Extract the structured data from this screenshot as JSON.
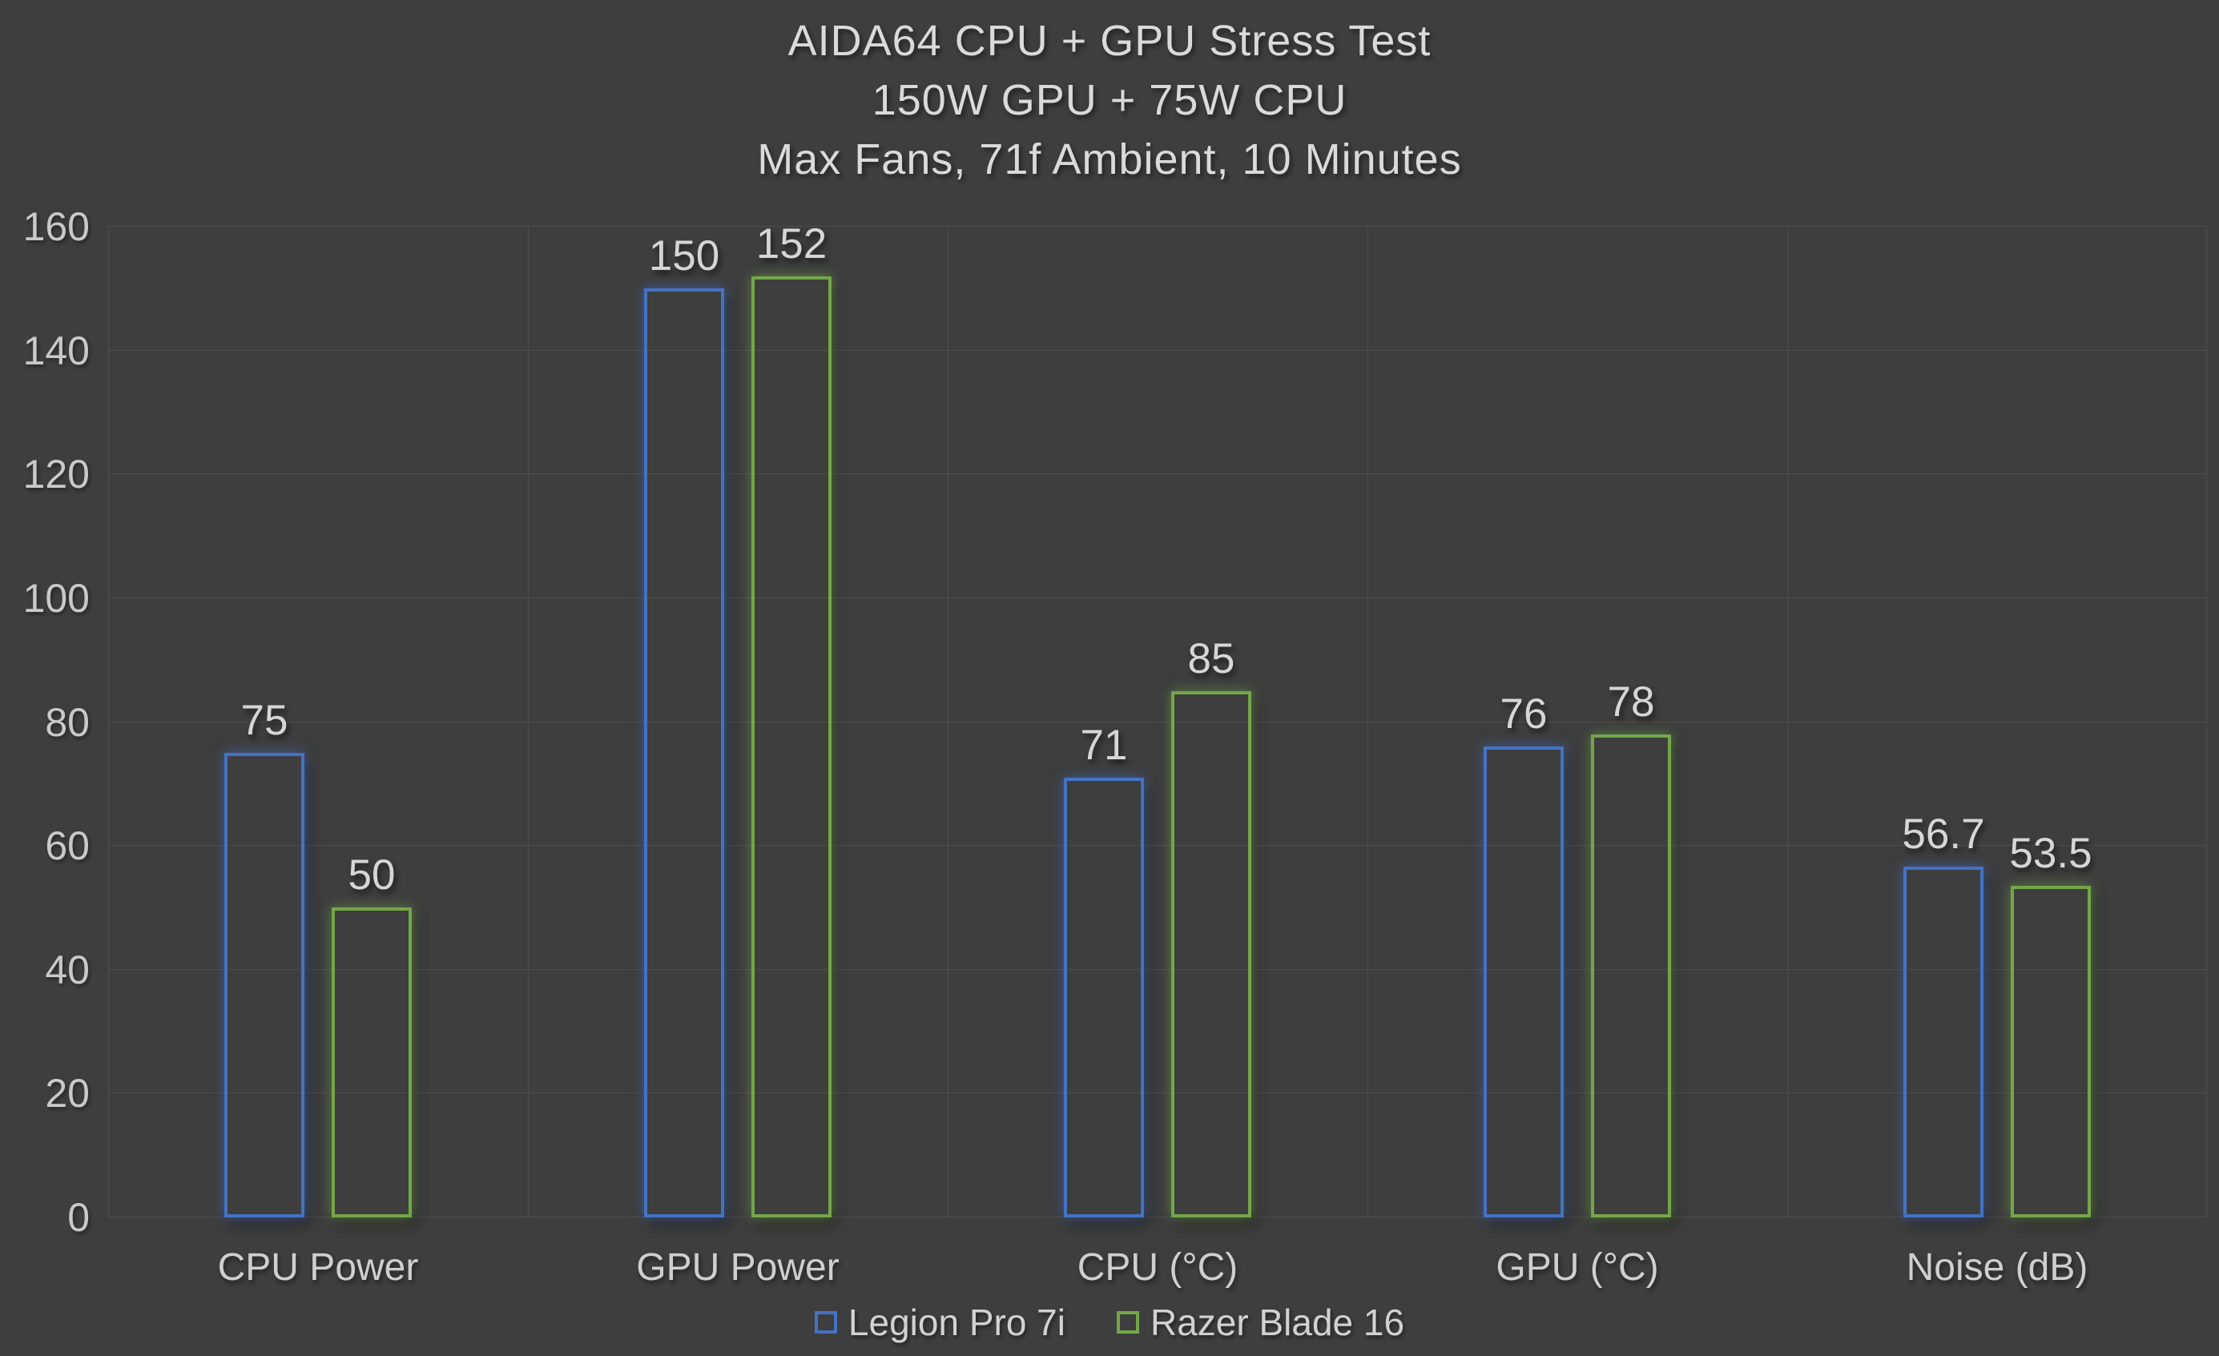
{
  "colors": {
    "background": "#3e3e3e",
    "gridline": "#4e4e4e",
    "text": "#d2d2d2",
    "series_blue": "#4472c4",
    "series_green": "#74a649"
  },
  "chart_data": {
    "type": "bar",
    "title": "AIDA64 CPU + GPU Stress Test",
    "title_lines": [
      "AIDA64 CPU + GPU Stress Test",
      "150W GPU + 75W CPU",
      "Max Fans, 71f Ambient, 10 Minutes"
    ],
    "categories": [
      "CPU Power",
      "GPU Power",
      "CPU (°C)",
      "GPU (°C)",
      "Noise (dB)"
    ],
    "series": [
      {
        "name": "Legion Pro 7i",
        "color": "#4472c4",
        "values": [
          75,
          150,
          71,
          76,
          56.7
        ]
      },
      {
        "name": "Razer Blade 16",
        "color": "#74a649",
        "values": [
          50,
          152,
          85,
          78,
          53.5
        ]
      }
    ],
    "xlabel": "",
    "ylabel": "",
    "ylim": [
      0,
      160
    ],
    "yticks": [
      0,
      20,
      40,
      60,
      80,
      100,
      120,
      140,
      160
    ],
    "grid": true,
    "legend_position": "bottom"
  }
}
